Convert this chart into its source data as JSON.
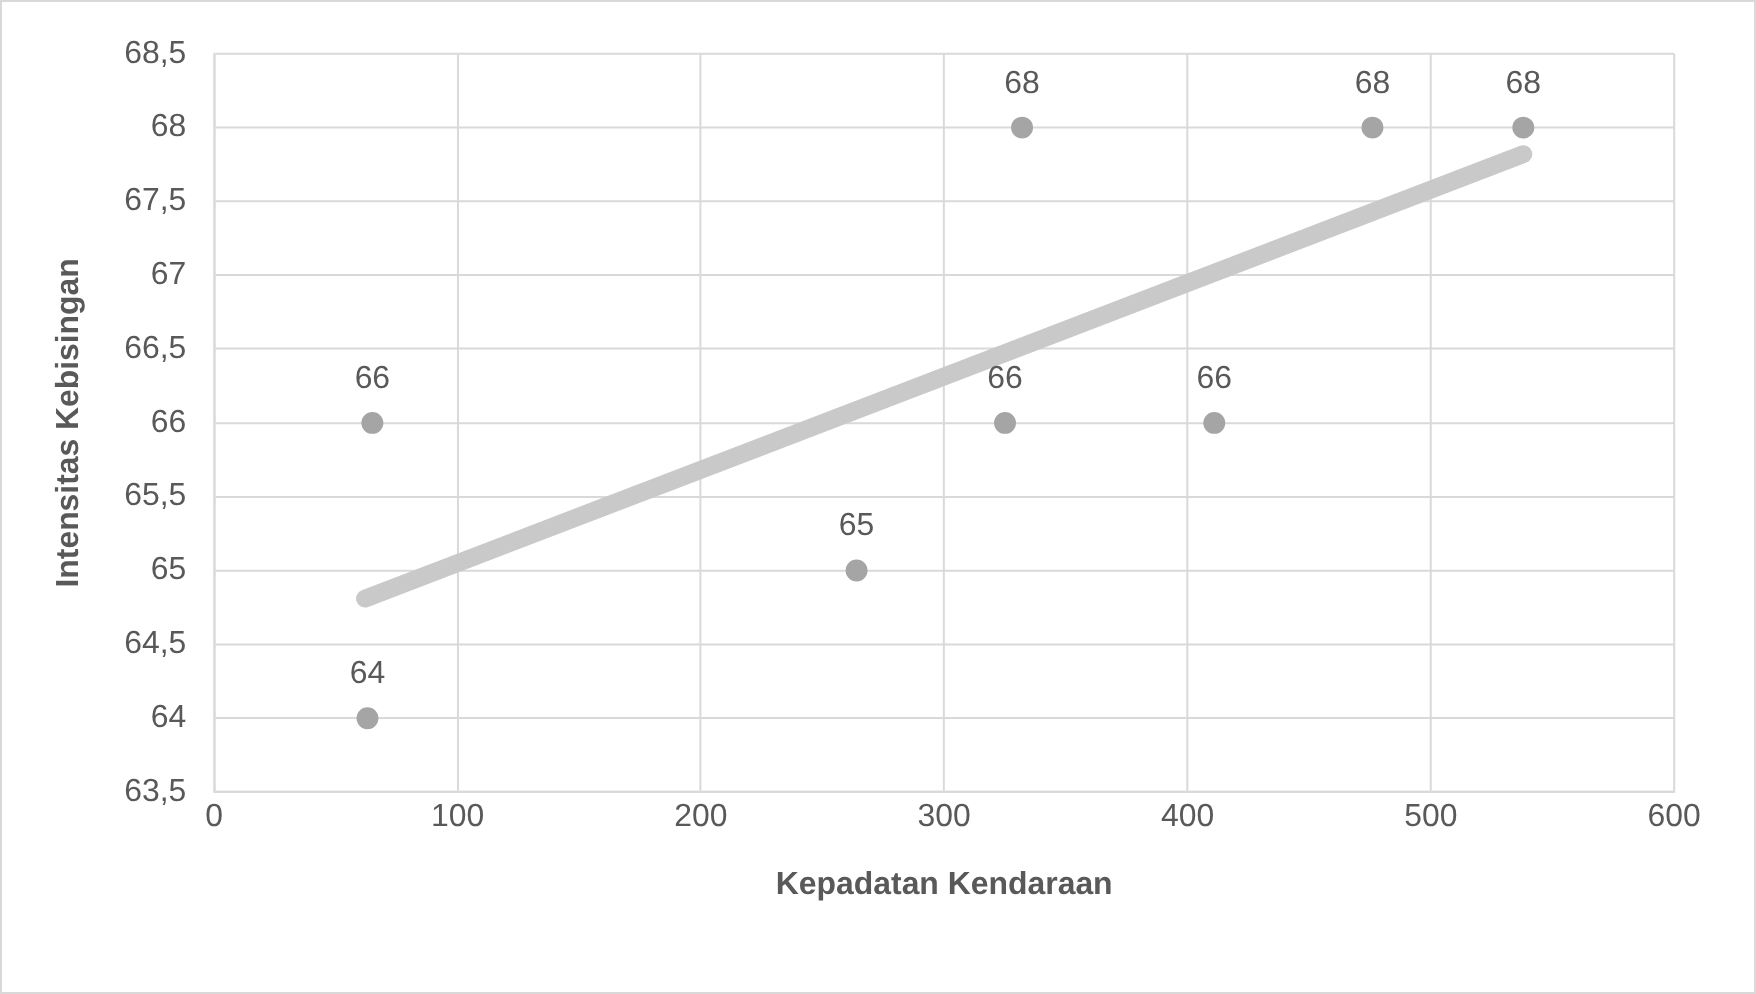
{
  "chart_data": {
    "type": "scatter",
    "xlabel": "Kepadatan Kendaraan",
    "ylabel": "Intensitas Kebisingan",
    "xlim": [
      0,
      600
    ],
    "xticks": [
      0,
      100,
      200,
      300,
      400,
      500,
      600
    ],
    "ylim": [
      63.5,
      68.5
    ],
    "yticks": [
      {
        "value": 63.5,
        "label": "63,5"
      },
      64,
      {
        "value": 64.5,
        "label": "64,5"
      },
      65,
      {
        "value": 65.5,
        "label": "65,5"
      },
      66,
      {
        "value": 66.5,
        "label": "66,5"
      },
      67,
      {
        "value": 67.5,
        "label": "67,5"
      },
      68,
      {
        "value": 68.5,
        "label": "68,5"
      }
    ],
    "grid": true,
    "series": [
      {
        "color": "#a5a5a5",
        "marker": "circle",
        "x": [
          63,
          65,
          264,
          325,
          332,
          411,
          476,
          538
        ],
        "values": [
          64,
          66,
          65,
          66,
          68,
          66,
          68,
          68
        ],
        "value_labels": [
          "64",
          "66",
          "65",
          "66",
          "68",
          "66",
          "68",
          "68"
        ]
      },
      {
        "type": "line",
        "color": "#c9c9c9",
        "marker": "none",
        "x": [
          62,
          538
        ],
        "values": [
          64.81,
          67.82
        ]
      }
    ]
  }
}
